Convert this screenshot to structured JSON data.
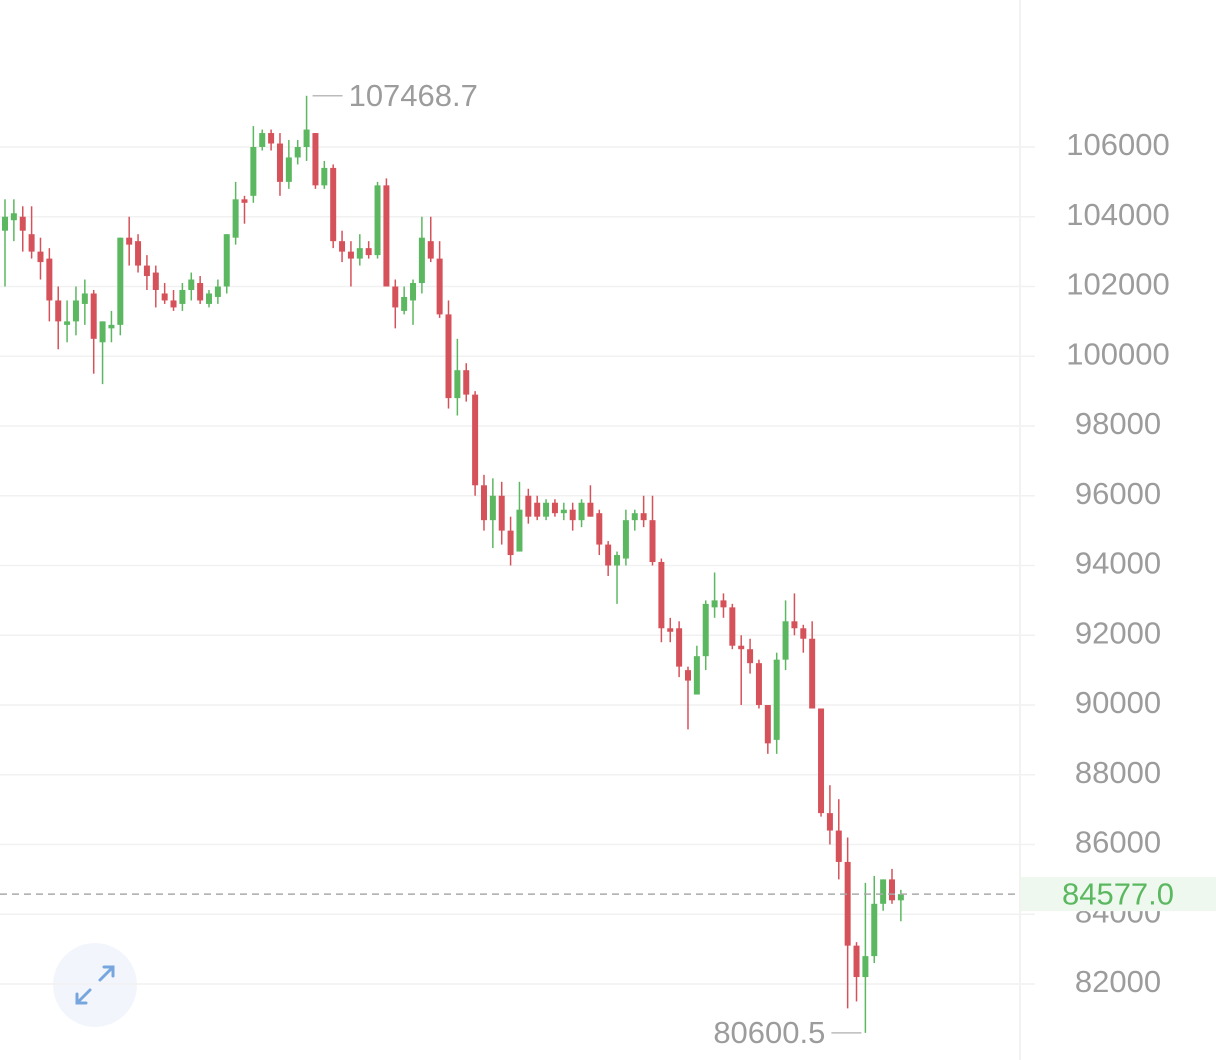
{
  "chart_data": {
    "type": "candlestick",
    "up_color": "#5cb860",
    "down_color": "#d6525a",
    "ylim": [
      79821,
      110215
    ],
    "yticks": [
      82000,
      84000,
      86000,
      88000,
      90000,
      92000,
      94000,
      96000,
      98000,
      100000,
      102000,
      104000,
      106000
    ],
    "grid": true,
    "open": [
      103600,
      103900,
      104000,
      103500,
      103000,
      102800,
      101600,
      100900,
      101000,
      101500,
      101800,
      100400,
      100800,
      100900,
      103400,
      103300,
      102600,
      102400,
      101800,
      101600,
      101500,
      101900,
      102100,
      101500,
      101700,
      102000,
      103400,
      104500,
      104600,
      106000,
      106400,
      106100,
      105000,
      105700,
      106000,
      106400,
      104900,
      105400,
      103300,
      103000,
      102800,
      103100,
      102900,
      104900,
      102000,
      101300,
      101600,
      102100,
      103300,
      102800,
      101200,
      98800,
      99600,
      98900,
      96300,
      95300,
      96000,
      95000,
      94400,
      96000,
      95800,
      95400,
      95800,
      95500,
      95600,
      95300,
      95800,
      95500,
      94600,
      94000,
      94200,
      95300,
      95500,
      95300,
      94100,
      92200,
      92200,
      91000,
      90300,
      91400,
      92800,
      93000,
      92800,
      91700,
      91600,
      91200,
      90000,
      89000,
      91300,
      92400,
      92200,
      91900,
      89900,
      86900,
      86400,
      85500,
      83100,
      82200,
      82800,
      84300,
      85000,
      84400
    ],
    "high": [
      104500,
      104500,
      104300,
      104300,
      103400,
      103100,
      102000,
      101600,
      102000,
      102200,
      101900,
      101000,
      101300,
      103400,
      104000,
      103500,
      102900,
      102600,
      102100,
      101900,
      102100,
      102400,
      102300,
      101900,
      102200,
      103500,
      105000,
      104600,
      106600,
      106500,
      106500,
      106400,
      106200,
      106200,
      107468.7,
      106400,
      105600,
      105500,
      103600,
      103300,
      103500,
      103300,
      105000,
      105100,
      102200,
      102000,
      102200,
      104000,
      104000,
      103300,
      101600,
      100500,
      99800,
      99000,
      96600,
      96500,
      96400,
      95400,
      96400,
      96200,
      96000,
      95900,
      95900,
      95800,
      95800,
      95900,
      96300,
      95600,
      94700,
      94400,
      95600,
      95600,
      96000,
      96000,
      94200,
      92500,
      92400,
      91100,
      91700,
      93000,
      93800,
      93200,
      92900,
      92000,
      91900,
      91300,
      90000,
      91500,
      93000,
      93200,
      92300,
      92400,
      89900,
      87700,
      87300,
      86200,
      83200,
      84900,
      85100,
      85000,
      85300,
      84700
    ],
    "low": [
      102000,
      103300,
      103000,
      102800,
      102200,
      101000,
      100200,
      100400,
      100600,
      100900,
      99500,
      99200,
      100400,
      100600,
      102600,
      102400,
      101900,
      101400,
      101500,
      101300,
      101300,
      101600,
      101500,
      101400,
      101500,
      101800,
      103200,
      103800,
      104400,
      105900,
      105900,
      104600,
      104800,
      105500,
      105600,
      104800,
      104800,
      103100,
      102700,
      102000,
      102600,
      102800,
      102800,
      102000,
      100800,
      101200,
      100900,
      101800,
      102700,
      101100,
      98500,
      98300,
      98700,
      96000,
      95000,
      94500,
      94600,
      94000,
      94400,
      95200,
      95300,
      95300,
      95400,
      95300,
      95000,
      95100,
      95400,
      94300,
      93700,
      92900,
      94000,
      95000,
      95100,
      94000,
      91800,
      91800,
      90800,
      89300,
      90300,
      91000,
      92500,
      92500,
      91600,
      90000,
      90900,
      89900,
      88600,
      88600,
      91000,
      92000,
      91500,
      89900,
      86800,
      86000,
      85000,
      81300,
      81500,
      80600.5,
      82600,
      84100,
      84300,
      83800
    ],
    "close": [
      104000,
      104100,
      103600,
      103000,
      102700,
      101600,
      101000,
      101000,
      101600,
      101800,
      100500,
      101000,
      100900,
      103400,
      103200,
      102600,
      102300,
      101900,
      101600,
      101400,
      101900,
      102200,
      101600,
      101800,
      102000,
      103500,
      104500,
      104400,
      106000,
      106400,
      106100,
      105000,
      105700,
      106000,
      106500,
      104900,
      105400,
      103300,
      103000,
      102800,
      103100,
      102900,
      104900,
      102000,
      101400,
      101700,
      102100,
      103400,
      102800,
      101200,
      98800,
      99600,
      98900,
      96300,
      95300,
      96000,
      95000,
      94300,
      95600,
      95400,
      95400,
      95800,
      95500,
      95600,
      95300,
      95800,
      95400,
      94600,
      94000,
      94300,
      95300,
      95500,
      95300,
      94100,
      92200,
      92100,
      91100,
      90700,
      91400,
      92900,
      93000,
      92800,
      91700,
      91600,
      91200,
      90000,
      88900,
      91300,
      92400,
      92200,
      91900,
      89900,
      86900,
      86400,
      85500,
      83100,
      82200,
      82800,
      84300,
      85000,
      84400,
      84577
    ],
    "max_label": 107468.7,
    "min_label": 80600.5,
    "last_price": {
      "value": 84577,
      "label": "84577.0"
    }
  }
}
